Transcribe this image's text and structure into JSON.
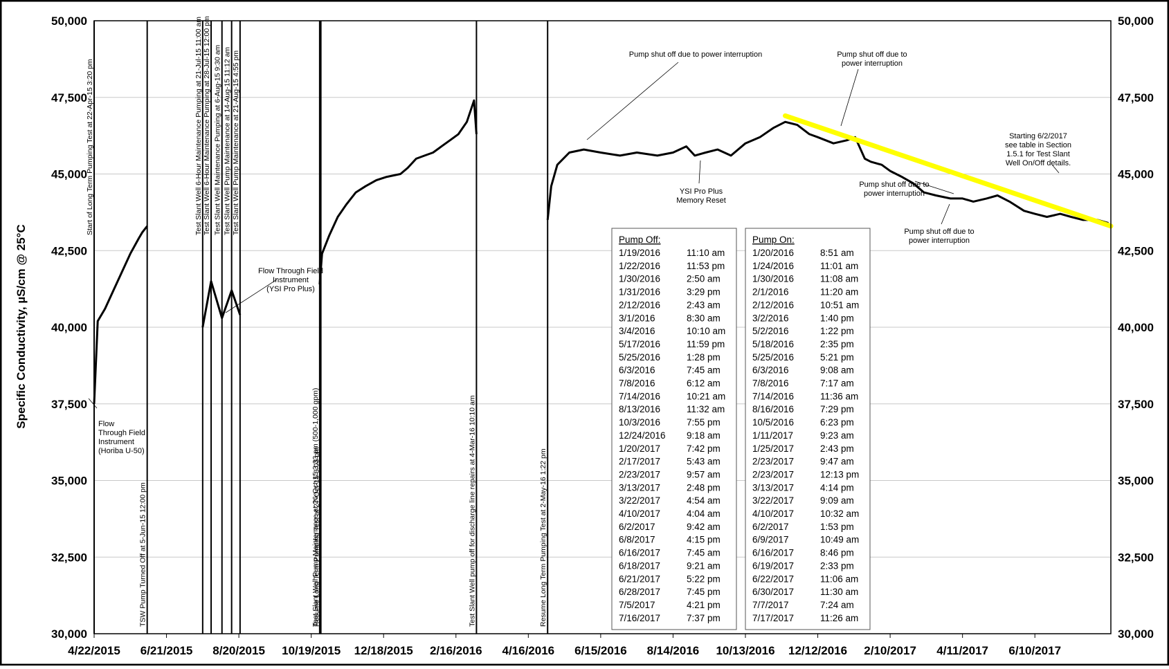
{
  "chart_data": {
    "type": "line",
    "title": "",
    "xlabel": "",
    "ylabel": "Specific Conductivity, µS/cm @ 25°C",
    "ylim": [
      30000,
      50000
    ],
    "yticks": [
      30000,
      32500,
      35000,
      37500,
      40000,
      42500,
      45000,
      47500,
      50000
    ],
    "ytick_labels": [
      "30,000",
      "32,500",
      "35,000",
      "37,500",
      "40,000",
      "42,500",
      "45,000",
      "47,500",
      "50,000"
    ],
    "xlim": [
      "2015-04-22",
      "2017-08-12"
    ],
    "xtick_labels": [
      "4/22/2015",
      "6/21/2015",
      "8/20/2015",
      "10/19/2015",
      "12/18/2015",
      "2/16/2016",
      "4/16/2016",
      "6/15/2016",
      "8/14/2016",
      "10/13/2016",
      "12/12/2016",
      "2/10/2017",
      "4/11/2017",
      "6/10/2017"
    ],
    "xtick_dates": [
      "2015-04-22",
      "2015-06-21",
      "2015-08-20",
      "2015-10-19",
      "2015-12-18",
      "2016-02-16",
      "2016-04-16",
      "2016-06-15",
      "2016-08-14",
      "2016-10-13",
      "2016-12-12",
      "2017-02-10",
      "2017-04-11",
      "2017-06-10"
    ],
    "grid": true,
    "series": [
      {
        "color": "#000000",
        "x": [
          "2015-04-22",
          "2015-04-25",
          "2015-05-01",
          "2015-05-08",
          "2015-05-15",
          "2015-05-22",
          "2015-05-29",
          "2015-06-01",
          "2015-06-05",
          "2015-07-21",
          "2015-07-28",
          "2015-08-06",
          "2015-08-14",
          "2015-08-21",
          "2015-10-26",
          "2015-10-28",
          "2015-11-03",
          "2015-11-10",
          "2015-11-17",
          "2015-11-25",
          "2015-12-03",
          "2015-12-12",
          "2015-12-20",
          "2016-01-01",
          "2016-01-07",
          "2016-01-14",
          "2016-01-21",
          "2016-01-28",
          "2016-02-04",
          "2016-02-11",
          "2016-02-18",
          "2016-02-25",
          "2016-03-02",
          "2016-03-04",
          "2016-05-02",
          "2016-05-05",
          "2016-05-10",
          "2016-05-20",
          "2016-06-01",
          "2016-06-15",
          "2016-07-01",
          "2016-07-15",
          "2016-08-01",
          "2016-08-14",
          "2016-08-25",
          "2016-09-01",
          "2016-09-10",
          "2016-09-20",
          "2016-10-01",
          "2016-10-13",
          "2016-10-25",
          "2016-11-05",
          "2016-11-15",
          "2016-11-25",
          "2016-12-05",
          "2016-12-12",
          "2016-12-25",
          "2017-01-05",
          "2017-01-12",
          "2017-01-20",
          "2017-01-25",
          "2017-02-03",
          "2017-02-10",
          "2017-02-20",
          "2017-03-01",
          "2017-03-10",
          "2017-03-20",
          "2017-04-01",
          "2017-04-11",
          "2017-04-20",
          "2017-05-01",
          "2017-05-10",
          "2017-05-20",
          "2017-06-01",
          "2017-06-10",
          "2017-06-20",
          "2017-07-01",
          "2017-07-10",
          "2017-07-20",
          "2017-08-01",
          "2017-08-10"
        ],
        "y": [
          37500,
          40200,
          40600,
          41200,
          41800,
          42400,
          42900,
          43100,
          43300,
          40000,
          41500,
          40300,
          41200,
          40400,
          41400,
          42400,
          43000,
          43600,
          44000,
          44400,
          44600,
          44800,
          44900,
          45000,
          45200,
          45500,
          45600,
          45700,
          45900,
          46100,
          46300,
          46700,
          47400,
          46300,
          43500,
          44600,
          45300,
          45700,
          45800,
          45700,
          45600,
          45700,
          45600,
          45700,
          45900,
          45600,
          45700,
          45800,
          45600,
          46000,
          46200,
          46500,
          46700,
          46600,
          46300,
          46200,
          46000,
          46100,
          46200,
          45500,
          45400,
          45300,
          45100,
          44900,
          44700,
          44400,
          44300,
          44200,
          44200,
          44100,
          44200,
          44300,
          44100,
          43800,
          43700,
          43600,
          43700,
          43600,
          43500,
          43500,
          43400
        ]
      },
      {
        "name": "trend",
        "color": "#ffff00",
        "x": [
          "2016-11-15",
          "2017-08-12"
        ],
        "y": [
          46900,
          43300
        ]
      }
    ],
    "vertical_event_lines": [
      {
        "date": "2015-04-22",
        "label": "Start of Long Term Pumping Test at 22-Apr-15 3:20 pm"
      },
      {
        "date": "2015-06-05",
        "label": "TSW Pump Turned Off at 5-Jun-15 12:00 pm"
      },
      {
        "date": "2015-07-21",
        "label": "Test Slant Well 6-Hour Maintenance Pumping at 21-Jul-15 11:00 am"
      },
      {
        "date": "2015-07-28",
        "label": "Test Slant Well 6-Hour Maintenance Pumping at 28-Jul-15 12:00 pm"
      },
      {
        "date": "2015-08-06",
        "label": "Test Slant Well Maintenance Pumping at 6-Aug-15 9:30 am"
      },
      {
        "date": "2015-08-14",
        "label": "Test Slant Well Pump Maintenance at 14-Aug-15 11:12 am"
      },
      {
        "date": "2015-08-21",
        "label": "Test Slant Well Pump Maintenance at 21-Aug-15 4:55 pm"
      },
      {
        "date": "2015-10-26",
        "label": "Test Slant Well Pump Maintenance at 26-Oct-15 3:33 pm (500-1,000 gpm)"
      },
      {
        "date": "2015-10-27",
        "label": "Resume Long Term Pumping Test at 27-Oct-15 3:03 pm"
      },
      {
        "date": "2016-03-04",
        "label": "Test Slant Well pump off for discharge line repairs at 4-Mar-16 10:10 am"
      },
      {
        "date": "2016-05-02",
        "label": "Resume Long Term Pumping Test at 2-May-16 1:22 pm"
      }
    ],
    "annotations": [
      {
        "text": "Flow Through Field Instrument (Horiba U-50)"
      },
      {
        "text": "Flow Through Field Instrument (YSI Pro Plus)"
      },
      {
        "text": "Pump shut off due to power interruption"
      },
      {
        "text": "Pump shut off due to power interruption"
      },
      {
        "text": "YSI Pro Plus Memory Reset"
      },
      {
        "text": "Pump shut off due to power interruption"
      },
      {
        "text": "Pump shut off due to power interruption"
      },
      {
        "text": "Starting 6/2/2017 see table in Section 1.5.1 for Test Slant Well On/Off details."
      }
    ],
    "pump_off": {
      "header": "Pump Off:",
      "rows": [
        [
          "1/19/2016",
          "11:10 am"
        ],
        [
          "1/22/2016",
          "11:53 pm"
        ],
        [
          "1/30/2016",
          "2:50 am"
        ],
        [
          "1/31/2016",
          "3:29 pm"
        ],
        [
          "2/12/2016",
          "2:43 am"
        ],
        [
          "3/1/2016",
          "8:30 am"
        ],
        [
          "3/4/2016",
          "10:10 am"
        ],
        [
          "5/17/2016",
          "11:59 pm"
        ],
        [
          "5/25/2016",
          "1:28 pm"
        ],
        [
          "6/3/2016",
          "7:45 am"
        ],
        [
          "7/8/2016",
          "6:12 am"
        ],
        [
          "7/14/2016",
          "10:21 am"
        ],
        [
          "8/13/2016",
          "11:32 am"
        ],
        [
          "10/3/2016",
          "7:55 pm"
        ],
        [
          "12/24/2016",
          "9:18 am"
        ],
        [
          "1/20/2017",
          "7:42 pm"
        ],
        [
          "2/17/2017",
          "5:43 am"
        ],
        [
          "2/23/2017",
          "9:57 am"
        ],
        [
          "3/13/2017",
          "2:48 pm"
        ],
        [
          "3/22/2017",
          "4:54 am"
        ],
        [
          "4/10/2017",
          "4:04 am"
        ],
        [
          "6/2/2017",
          "9:42 am"
        ],
        [
          "6/8/2017",
          "4:15 pm"
        ],
        [
          "6/16/2017",
          "7:45 am"
        ],
        [
          "6/18/2017",
          "9:21 am"
        ],
        [
          "6/21/2017",
          "5:22 pm"
        ],
        [
          "6/28/2017",
          "7:45 pm"
        ],
        [
          "7/5/2017",
          "4:21 pm"
        ],
        [
          "7/16/2017",
          "7:37 pm"
        ]
      ]
    },
    "pump_on": {
      "header": "Pump On:",
      "rows": [
        [
          "1/20/2016",
          "8:51 am"
        ],
        [
          "1/24/2016",
          "11:01 am"
        ],
        [
          "1/30/2016",
          "11:08 am"
        ],
        [
          "2/1/2016",
          "11:20 am"
        ],
        [
          "2/12/2016",
          "10:51 am"
        ],
        [
          "3/2/2016",
          "1:40 pm"
        ],
        [
          "5/2/2016",
          "1:22 pm"
        ],
        [
          "5/18/2016",
          "2:35 pm"
        ],
        [
          "5/25/2016",
          "5:21 pm"
        ],
        [
          "6/3/2016",
          "9:08 am"
        ],
        [
          "7/8/2016",
          "7:17 am"
        ],
        [
          "7/14/2016",
          "11:36 am"
        ],
        [
          "8/16/2016",
          "7:29 pm"
        ],
        [
          "10/5/2016",
          "6:23 pm"
        ],
        [
          "1/11/2017",
          "9:23 am"
        ],
        [
          "1/25/2017",
          "2:43 pm"
        ],
        [
          "2/23/2017",
          "9:47 am"
        ],
        [
          "2/23/2017",
          "12:13 pm"
        ],
        [
          "3/13/2017",
          "4:14 pm"
        ],
        [
          "3/22/2017",
          "9:09 am"
        ],
        [
          "4/10/2017",
          "10:32 am"
        ],
        [
          "6/2/2017",
          "1:53 pm"
        ],
        [
          "6/9/2017",
          "10:49 am"
        ],
        [
          "6/16/2017",
          "8:46 pm"
        ],
        [
          "6/19/2017",
          "2:33 pm"
        ],
        [
          "6/22/2017",
          "11:06 am"
        ],
        [
          "6/30/2017",
          "11:30 am"
        ],
        [
          "7/7/2017",
          "7:24 am"
        ],
        [
          "7/17/2017",
          "11:26 am"
        ]
      ]
    }
  }
}
